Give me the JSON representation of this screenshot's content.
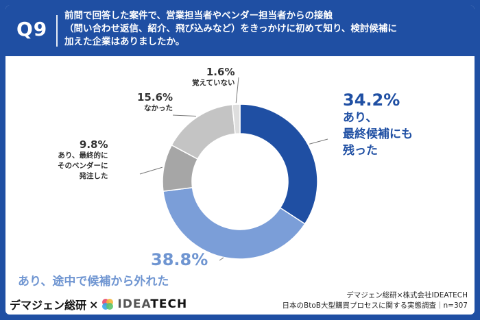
{
  "header": {
    "question_no": "Q9",
    "question_lines": [
      "前問で回答した案件で、営業担当者やベンダー担当者からの接触",
      "（問い合わせ返信、紹介、飛び込みなど）をきっかけに初めて知り、検討候補に",
      "加えた企業はありましたか。"
    ]
  },
  "chart_data": {
    "type": "pie",
    "variant": "donut",
    "title": "",
    "unit": "%",
    "slices": [
      {
        "label_lines": [
          "あり、",
          "最終候補にも",
          "残った"
        ],
        "value": 34.2,
        "value_text": "34.2%",
        "color": "#1f4fa3"
      },
      {
        "label_lines": [
          "あり、途中で候補から外れた"
        ],
        "value": 38.8,
        "value_text": "38.8%",
        "color": "#7b9ed8"
      },
      {
        "label_lines": [
          "あり、最終的に",
          "そのベンダーに",
          "発注した"
        ],
        "value": 9.8,
        "value_text": "9.8%",
        "color": "#a6a6a6"
      },
      {
        "label_lines": [
          "なかった"
        ],
        "value": 15.6,
        "value_text": "15.6%",
        "color": "#c4c4c4"
      },
      {
        "label_lines": [
          "覚えていない"
        ],
        "value": 1.6,
        "value_text": "1.6%",
        "color": "#dedede"
      }
    ]
  },
  "footer": {
    "brand_left": "デマジェン総研",
    "brand_cross": "×",
    "brand_right_1": "IDEA",
    "brand_right_2": "TECH",
    "source_line1": "デマジェン総研×株式会社IDEATECH",
    "source_line2": "日本のBtoB大型購買プロセスに関する実態調査｜n=307"
  }
}
